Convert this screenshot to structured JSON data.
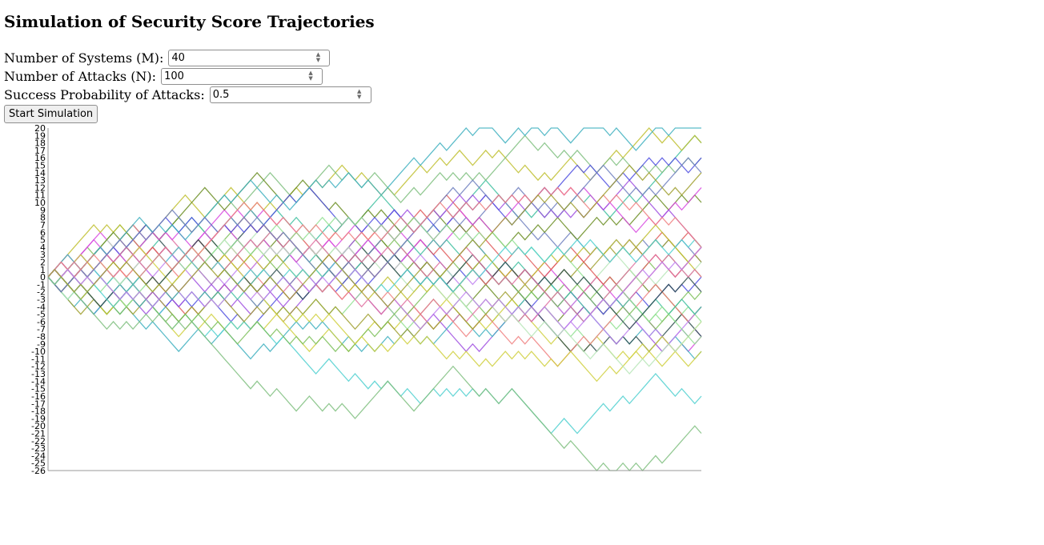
{
  "page": {
    "title": "Simulation of Security Score Trajectories"
  },
  "form": {
    "systems": {
      "label": "Number of Systems (M):",
      "value": "40"
    },
    "attacks": {
      "label": "Number of Attacks (N):",
      "value": "100"
    },
    "probability": {
      "label": "Success Probability of Attacks:",
      "value": "0.5"
    },
    "start_button": "Start Simulation"
  },
  "chart_data": {
    "type": "line",
    "title": "",
    "xlabel": "",
    "ylabel": "",
    "ylim": [
      -26,
      20
    ],
    "xlim": [
      0,
      100
    ],
    "y_ticks": [
      20,
      19,
      18,
      17,
      16,
      15,
      14,
      13,
      12,
      11,
      10,
      9,
      8,
      7,
      6,
      5,
      4,
      3,
      2,
      1,
      0,
      -1,
      -2,
      -3,
      -4,
      -5,
      -6,
      -7,
      -8,
      -9,
      -10,
      -11,
      -12,
      -13,
      -14,
      -15,
      -16,
      -17,
      -18,
      -19,
      -20,
      -21,
      -22,
      -23,
      -24,
      -25,
      -26
    ],
    "num_series": 40,
    "steps": 100,
    "step_size": 1,
    "series_shown_endpoints": [
      {
        "color": "#b8e6b8",
        "final": 20
      },
      {
        "color": "#d84ae0",
        "final": 18
      },
      {
        "color": "#c05cf0",
        "final": 16
      },
      {
        "color": "#7cbf5a",
        "final": 14
      },
      {
        "color": "#e05a5a",
        "final": 10
      },
      {
        "color": "#2f4f4f",
        "final": 8
      },
      {
        "color": "#6b8e23",
        "final": 2
      },
      {
        "color": "#40b0c0",
        "final": 0
      },
      {
        "color": "#d0d040",
        "final": -3
      },
      {
        "color": "#e05a5a",
        "final": -6
      },
      {
        "color": "#a050e0",
        "final": -9
      },
      {
        "color": "#2f4f4f",
        "final": -12
      },
      {
        "color": "#90e090",
        "final": -15
      },
      {
        "color": "#5050e0",
        "final": -21
      },
      {
        "color": "#40c0a0",
        "final": -22
      },
      {
        "color": "#c0c030",
        "final": -24
      }
    ],
    "colors": [
      "#7cbf5a",
      "#6b8e23",
      "#e05a5a",
      "#d84ae0",
      "#a050e0",
      "#5050e0",
      "#40c0a0",
      "#40b0c0",
      "#d0d040",
      "#c0c030",
      "#b8e6b8",
      "#90e090",
      "#2f4f4f",
      "#e070a0",
      "#7080c0",
      "#50d0d0",
      "#f08080",
      "#c080f0",
      "#80c080",
      "#a0a030"
    ]
  }
}
